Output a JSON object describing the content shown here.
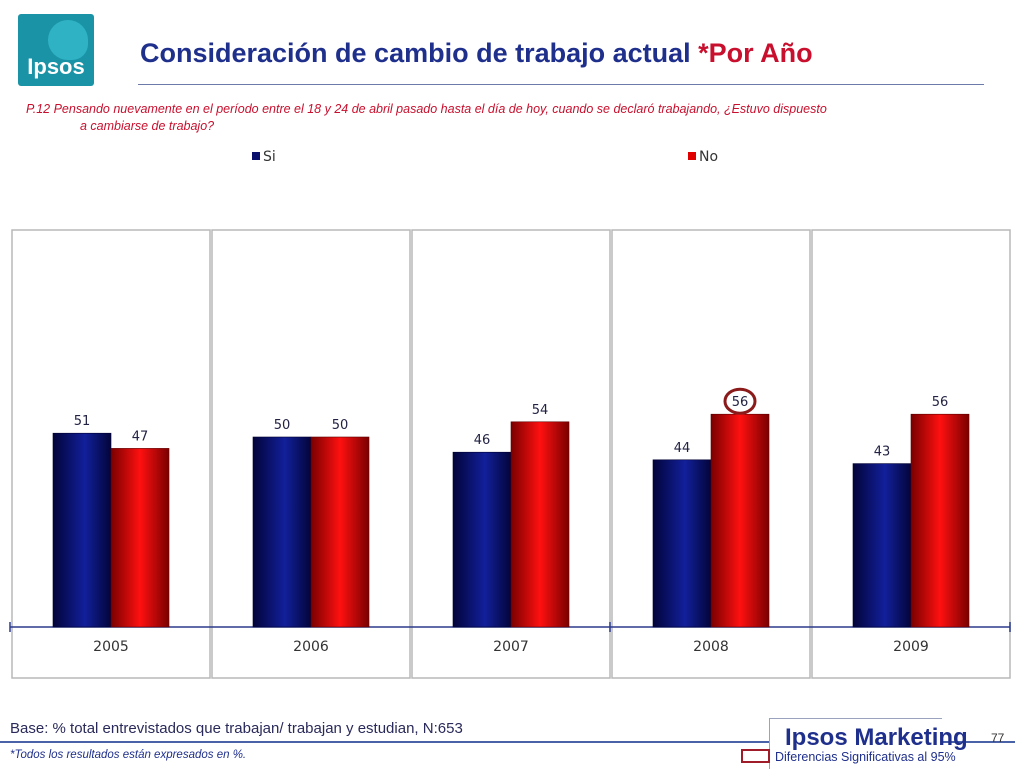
{
  "logo": {
    "text": "Ipsos"
  },
  "header": {
    "title_main": "Consideración de cambio de trabajo actual ",
    "title_accent": "*Por Año"
  },
  "question": {
    "line1": "P.12  Pensando nuevamente en el período entre el 18 y 24 de abril pasado hasta el día de hoy, cuando se declaró trabajando, ¿Estuvo dispuesto",
    "line2": "a cambiarse de trabajo?"
  },
  "colors": {
    "si": "#0a0f6e",
    "no": "#e00000",
    "highlight": "#8b1a1a",
    "panel_border": "#b8b8b8",
    "axis": "#2b3a8c"
  },
  "chart_data": {
    "type": "bar",
    "categories": [
      "2005",
      "2006",
      "2007",
      "2008",
      "2009"
    ],
    "series": [
      {
        "name": "Si",
        "values": [
          51,
          50,
          46,
          44,
          43
        ]
      },
      {
        "name": "No",
        "values": [
          47,
          50,
          54,
          56,
          56
        ]
      }
    ],
    "ylim": [
      0,
      100
    ],
    "legend": "top",
    "grid": false,
    "highlighted": [
      {
        "series": "No",
        "category": "2008",
        "value": 56
      }
    ],
    "value_labels": true
  },
  "footer": {
    "base": "Base: % total entrevistados que trabajan/ trabajan y estudian, N:653",
    "note": "*Todos los resultados están expresados en %.",
    "brand": "Ipsos Marketing",
    "page_number": "77",
    "significance": "Diferencias Significativas al 95%"
  }
}
